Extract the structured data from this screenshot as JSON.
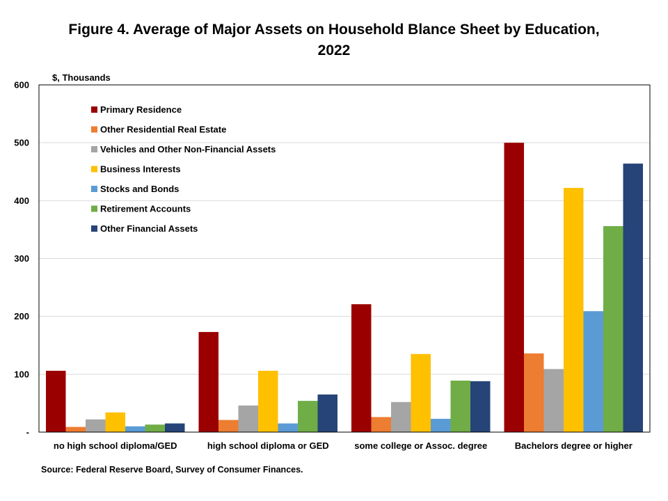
{
  "title_line1": "Figure 4. Average of Major Assets on Household Blance Sheet by Education,",
  "title_line2": "2022",
  "unit_label": "$, Thousands",
  "source": "Source: Federal Reserve Board, Survey of Consumer Finances.",
  "chart_data": {
    "type": "bar",
    "title": "Figure 4. Average of Major Assets on Household Blance Sheet by Education, 2022",
    "ylabel": "$, Thousands",
    "ylim": [
      0,
      600
    ],
    "yticks": [
      0,
      100,
      200,
      300,
      400,
      500,
      600
    ],
    "ytick_labels": [
      "-",
      "100",
      "200",
      "300",
      "400",
      "500",
      "600"
    ],
    "grid": true,
    "legend_position": "top-left",
    "categories": [
      "no high school diploma/GED",
      "high school diploma or GED",
      "some college or Assoc. degree",
      "Bachelors degree or higher"
    ],
    "series": [
      {
        "name": "Primary Residence",
        "color": "#9b0000",
        "values": [
          106,
          173,
          221,
          500
        ]
      },
      {
        "name": "Other Residential Real Estate",
        "color": "#ed7d31",
        "values": [
          9,
          21,
          26,
          136
        ]
      },
      {
        "name": "Vehicles and Other Non-Financial Assets",
        "color": "#a5a5a5",
        "values": [
          22,
          46,
          52,
          109
        ]
      },
      {
        "name": "Business Interests",
        "color": "#ffc000",
        "values": [
          34,
          106,
          135,
          422
        ]
      },
      {
        "name": "Stocks and Bonds",
        "color": "#5b9bd5",
        "values": [
          10,
          15,
          23,
          209
        ]
      },
      {
        "name": "Retirement Accounts",
        "color": "#70ad47",
        "values": [
          13,
          54,
          89,
          356
        ]
      },
      {
        "name": "Other Financial Assets",
        "color": "#264478",
        "values": [
          15,
          65,
          88,
          464
        ]
      }
    ]
  }
}
